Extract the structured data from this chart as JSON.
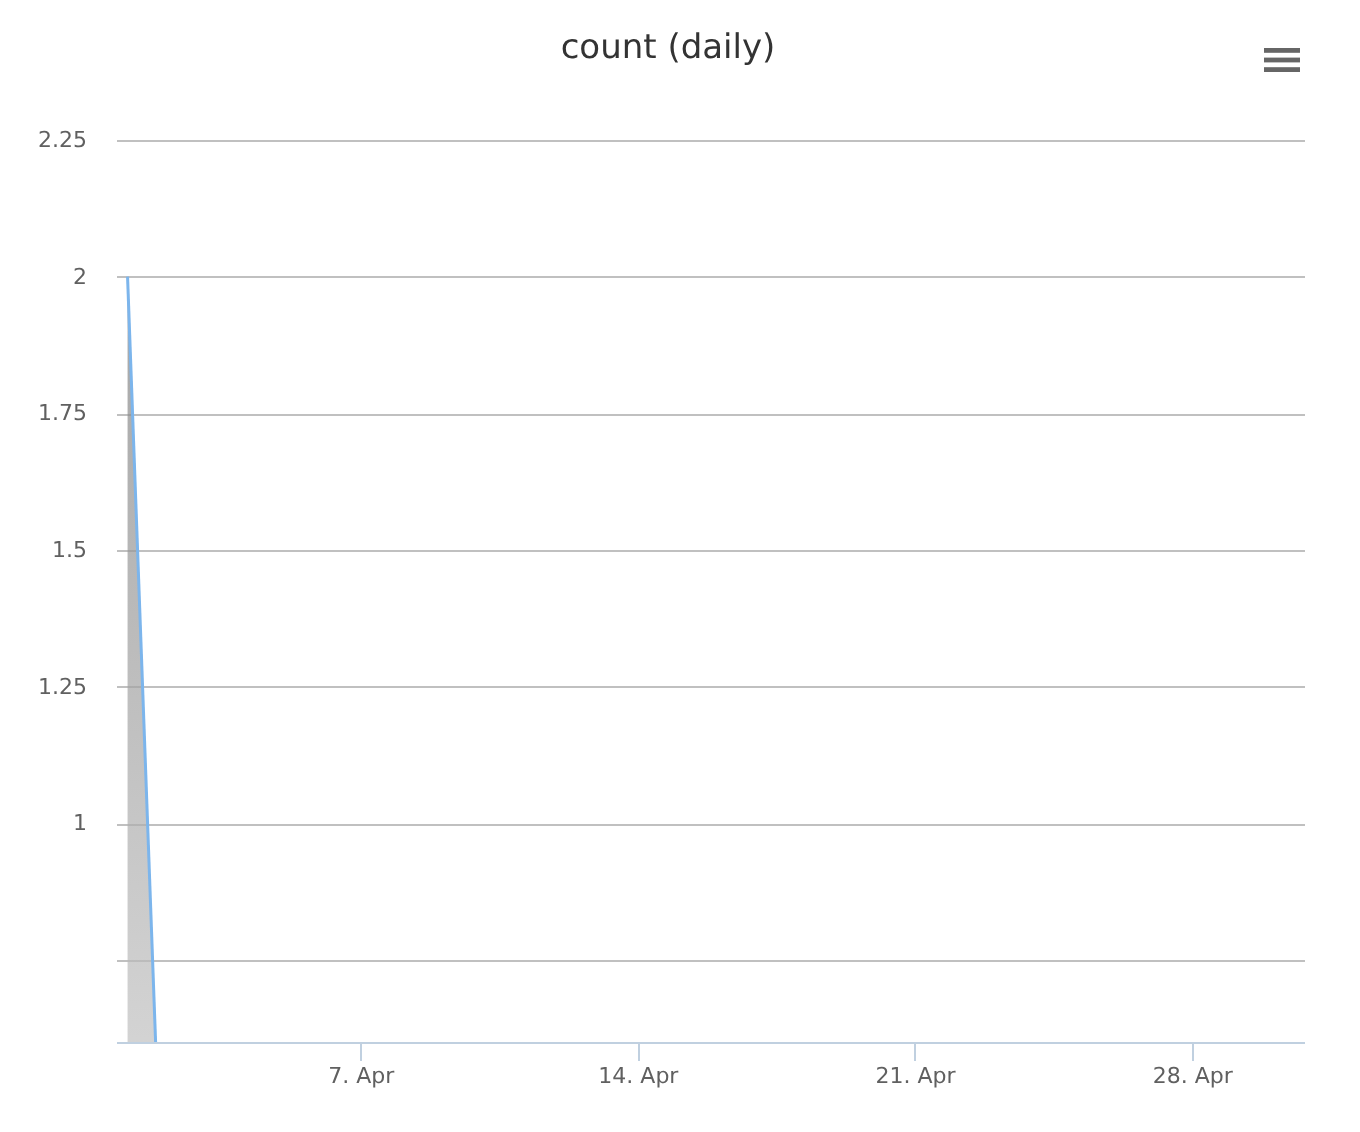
{
  "chart_data": {
    "type": "area",
    "title": "count (daily)",
    "x": [
      "--04-01T03:00",
      "--04-01T20:00"
    ],
    "series": [
      {
        "color": "#7cb5ec",
        "values": [
          2,
          0.6
        ]
      }
    ],
    "xlim": [
      "--03-31T20:00",
      "--04-30T20:00"
    ],
    "xticks": [
      {
        "value": "--04-07",
        "label": "7. Apr"
      },
      {
        "value": "--04-14",
        "label": "14. Apr"
      },
      {
        "value": "--04-21",
        "label": "21. Apr"
      },
      {
        "value": "--04-28",
        "label": "28. Apr"
      }
    ],
    "ylim": [
      0.6,
      2.25
    ],
    "yticks": [
      {
        "value": 0.75,
        "label": null
      },
      1,
      1.25,
      1.5,
      1.75,
      2,
      2.25
    ],
    "grid": "y"
  }
}
